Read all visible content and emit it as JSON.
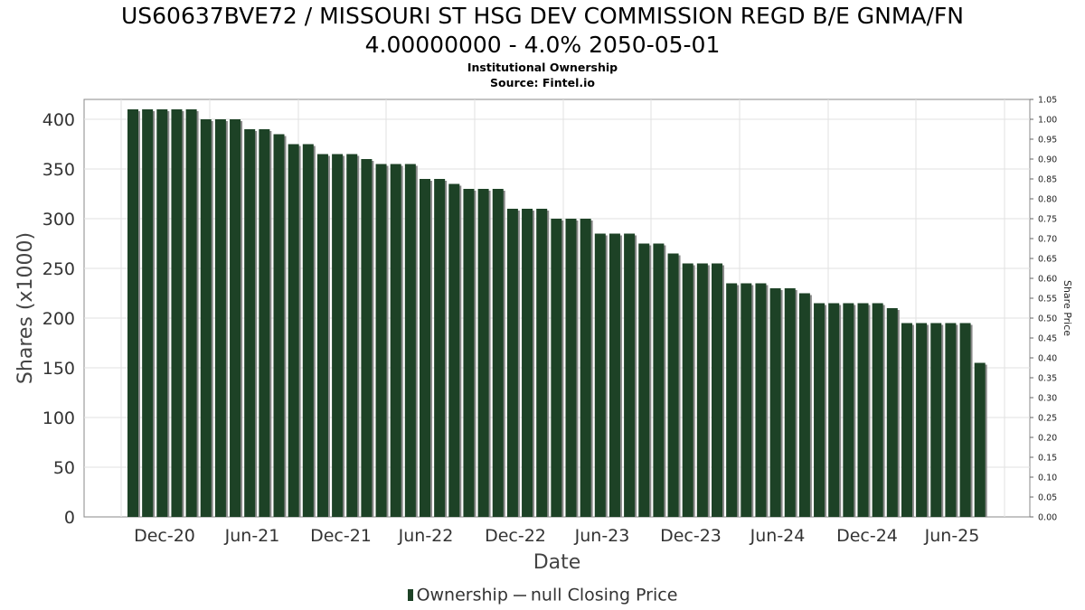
{
  "chart_data": {
    "type": "bar",
    "title": "US60637BVE72 / MISSOURI ST HSG DEV COMMISSION REGD B/E GNMA/FN",
    "title_line2": "4.00000000 - 4.0% 2050-05-01",
    "subtitle": "Institutional Ownership",
    "source": "Source: Fintel.io",
    "xlabel": "Date",
    "ylabel": "Shares (x1000)",
    "y2label": "Share Price",
    "ylim": [
      0,
      420
    ],
    "yticks": [
      0,
      50,
      100,
      150,
      200,
      250,
      300,
      350,
      400
    ],
    "y2lim": [
      0,
      1.05
    ],
    "y2ticks": [
      "0.00",
      "0.05",
      "0.10",
      "0.15",
      "0.20",
      "0.25",
      "0.30",
      "0.35",
      "0.40",
      "0.45",
      "0.50",
      "0.55",
      "0.60",
      "0.65",
      "0.70",
      "0.75",
      "0.80",
      "0.85",
      "0.90",
      "0.95",
      "1.00",
      "1.05"
    ],
    "xticks": [
      "Dec-20",
      "Jun-21",
      "Dec-21",
      "Jun-22",
      "Dec-22",
      "Jun-23",
      "Dec-23",
      "Jun-24",
      "Dec-24",
      "Jun-25"
    ],
    "grid": true,
    "legend_position": "bottom",
    "series": [
      {
        "name": "Ownership",
        "color": "#1d4226",
        "values": [
          410,
          410,
          410,
          410,
          410,
          400,
          400,
          400,
          390,
          390,
          385,
          375,
          375,
          365,
          365,
          365,
          360,
          355,
          355,
          355,
          340,
          340,
          335,
          330,
          330,
          330,
          310,
          310,
          310,
          300,
          300,
          300,
          285,
          285,
          285,
          275,
          275,
          265,
          255,
          255,
          255,
          235,
          235,
          235,
          230,
          230,
          225,
          215,
          215,
          215,
          215,
          215,
          210,
          195,
          195,
          195,
          195,
          195,
          155
        ]
      },
      {
        "name": "null Closing Price",
        "color": "#666666",
        "values": []
      }
    ]
  }
}
